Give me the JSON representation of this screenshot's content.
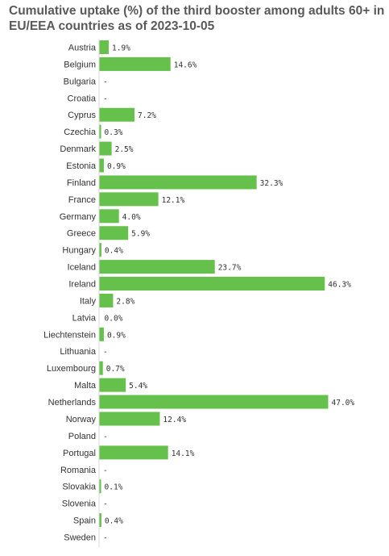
{
  "chart_data": {
    "type": "bar",
    "orientation": "horizontal",
    "title": "Cumulative uptake (%) of the third booster among adults 60+ in EU/EEA countries as of 2023-10-05",
    "bar_color": "#66c14c",
    "missing_label": "-",
    "unit_suffix": "%",
    "grid": false,
    "legend": "none",
    "categories": [
      "Austria",
      "Belgium",
      "Bulgaria",
      "Croatia",
      "Cyprus",
      "Czechia",
      "Denmark",
      "Estonia",
      "Finland",
      "France",
      "Germany",
      "Greece",
      "Hungary",
      "Iceland",
      "Ireland",
      "Italy",
      "Latvia",
      "Liechtenstein",
      "Lithuania",
      "Luxembourg",
      "Malta",
      "Netherlands",
      "Norway",
      "Poland",
      "Portugal",
      "Romania",
      "Slovakia",
      "Slovenia",
      "Spain",
      "Sweden"
    ],
    "values": [
      1.9,
      14.6,
      null,
      null,
      7.2,
      0.3,
      2.5,
      0.9,
      32.3,
      12.1,
      4.0,
      5.9,
      0.4,
      23.7,
      46.3,
      2.8,
      0.0,
      0.9,
      null,
      0.7,
      5.4,
      47.0,
      12.4,
      null,
      14.1,
      null,
      0.1,
      null,
      0.4,
      null
    ],
    "xlim": [
      0,
      47.0
    ]
  }
}
